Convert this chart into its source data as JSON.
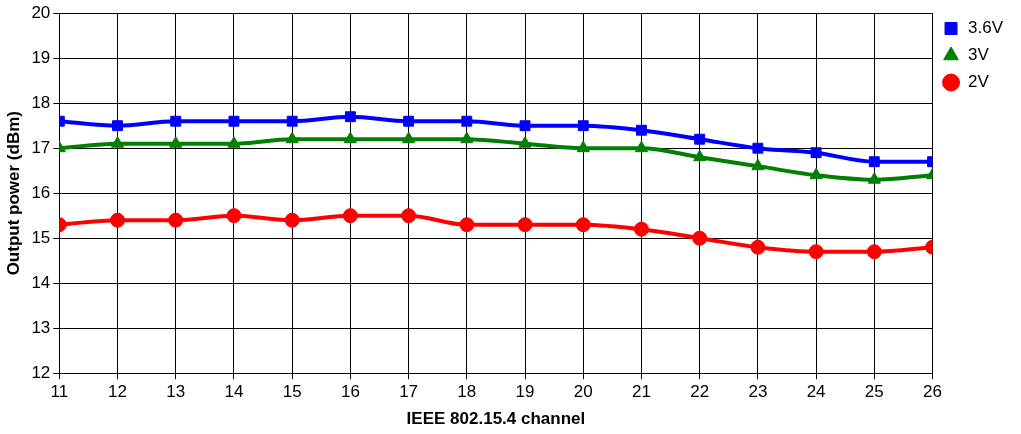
{
  "chart_data": {
    "type": "line",
    "xlabel": "IEEE 802.15.4 channel",
    "ylabel": "Output power (dBm)",
    "x": [
      11,
      12,
      13,
      14,
      15,
      16,
      17,
      18,
      19,
      20,
      21,
      22,
      23,
      24,
      25,
      26
    ],
    "xlim": [
      11,
      26
    ],
    "xticks": [
      11,
      12,
      13,
      14,
      15,
      16,
      17,
      18,
      19,
      20,
      21,
      22,
      23,
      24,
      25,
      26
    ],
    "ylim": [
      12,
      20
    ],
    "yticks": [
      12,
      13,
      14,
      15,
      16,
      17,
      18,
      19,
      20
    ],
    "grid": true,
    "legend": "top right",
    "line_style": "solid",
    "series": [
      {
        "name": "3.6V",
        "color": "#0000ff",
        "marker": "square",
        "values": [
          17.6,
          17.5,
          17.6,
          17.6,
          17.6,
          17.7,
          17.6,
          17.6,
          17.5,
          17.5,
          17.4,
          17.2,
          17.0,
          16.9,
          16.7,
          16.7
        ]
      },
      {
        "name": "3V",
        "color": "#008000",
        "marker": "triangle",
        "values": [
          17.0,
          17.1,
          17.1,
          17.1,
          17.2,
          17.2,
          17.2,
          17.2,
          17.1,
          17.0,
          17.0,
          16.8,
          16.6,
          16.4,
          16.3,
          16.4
        ]
      },
      {
        "name": "2V",
        "color": "#ff0000",
        "marker": "circle",
        "values": [
          15.3,
          15.4,
          15.4,
          15.5,
          15.4,
          15.5,
          15.5,
          15.3,
          15.3,
          15.3,
          15.2,
          15.0,
          14.8,
          14.7,
          14.7,
          14.8
        ]
      }
    ]
  }
}
